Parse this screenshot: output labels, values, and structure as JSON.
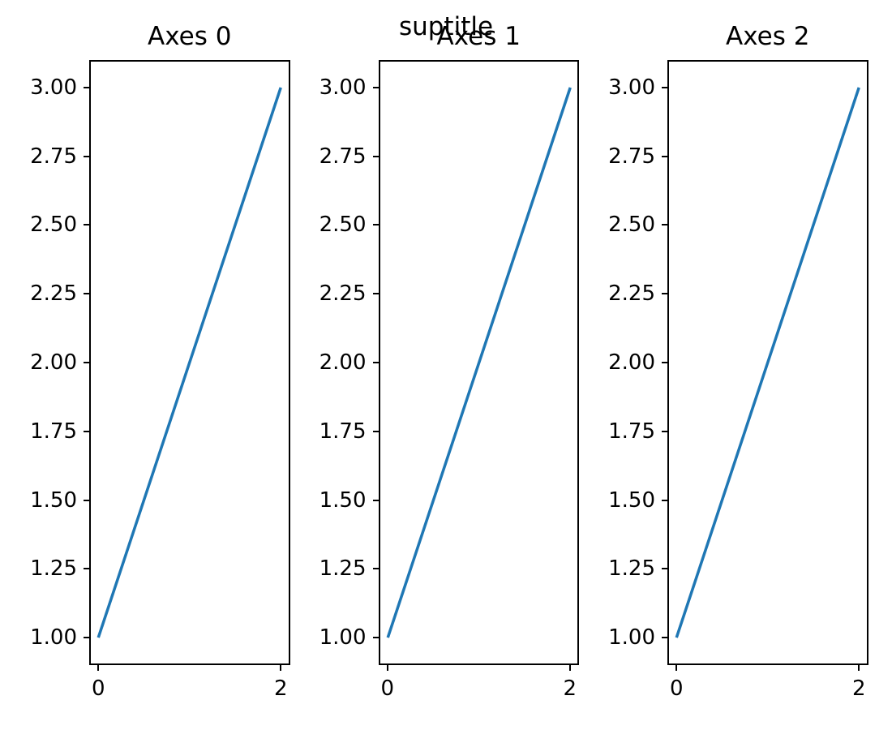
{
  "figure": {
    "suptitle": "suptitle",
    "background_color": "#ffffff",
    "text_color": "#000000",
    "frame_color": "#000000"
  },
  "chart_data": [
    {
      "type": "line",
      "title": "Axes 0",
      "x": [
        0,
        2
      ],
      "y": [
        1,
        3
      ],
      "xlim": [
        -0.1,
        2.1
      ],
      "ylim": [
        0.9,
        3.1
      ],
      "grid": false,
      "line_color": "#1f77b4",
      "xticks": [
        {
          "value": 0,
          "label": "0"
        },
        {
          "value": 2,
          "label": "2"
        }
      ],
      "yticks": [
        {
          "value": 1.0,
          "label": "1.00"
        },
        {
          "value": 1.25,
          "label": "1.25"
        },
        {
          "value": 1.5,
          "label": "1.50"
        },
        {
          "value": 1.75,
          "label": "1.75"
        },
        {
          "value": 2.0,
          "label": "2.00"
        },
        {
          "value": 2.25,
          "label": "2.25"
        },
        {
          "value": 2.5,
          "label": "2.50"
        },
        {
          "value": 2.75,
          "label": "2.75"
        },
        {
          "value": 3.0,
          "label": "3.00"
        }
      ]
    },
    {
      "type": "line",
      "title": "Axes 1",
      "x": [
        0,
        2
      ],
      "y": [
        1,
        3
      ],
      "xlim": [
        -0.1,
        2.1
      ],
      "ylim": [
        0.9,
        3.1
      ],
      "grid": false,
      "line_color": "#1f77b4",
      "xticks": [
        {
          "value": 0,
          "label": "0"
        },
        {
          "value": 2,
          "label": "2"
        }
      ],
      "yticks": [
        {
          "value": 1.0,
          "label": "1.00"
        },
        {
          "value": 1.25,
          "label": "1.25"
        },
        {
          "value": 1.5,
          "label": "1.50"
        },
        {
          "value": 1.75,
          "label": "1.75"
        },
        {
          "value": 2.0,
          "label": "2.00"
        },
        {
          "value": 2.25,
          "label": "2.25"
        },
        {
          "value": 2.5,
          "label": "2.50"
        },
        {
          "value": 2.75,
          "label": "2.75"
        },
        {
          "value": 3.0,
          "label": "3.00"
        }
      ]
    },
    {
      "type": "line",
      "title": "Axes 2",
      "x": [
        0,
        2
      ],
      "y": [
        1,
        3
      ],
      "xlim": [
        -0.1,
        2.1
      ],
      "ylim": [
        0.9,
        3.1
      ],
      "grid": false,
      "line_color": "#1f77b4",
      "xticks": [
        {
          "value": 0,
          "label": "0"
        },
        {
          "value": 2,
          "label": "2"
        }
      ],
      "yticks": [
        {
          "value": 1.0,
          "label": "1.00"
        },
        {
          "value": 1.25,
          "label": "1.25"
        },
        {
          "value": 1.5,
          "label": "1.50"
        },
        {
          "value": 1.75,
          "label": "1.75"
        },
        {
          "value": 2.0,
          "label": "2.00"
        },
        {
          "value": 2.25,
          "label": "2.25"
        },
        {
          "value": 2.5,
          "label": "2.50"
        },
        {
          "value": 2.75,
          "label": "2.75"
        },
        {
          "value": 3.0,
          "label": "3.00"
        }
      ]
    }
  ]
}
